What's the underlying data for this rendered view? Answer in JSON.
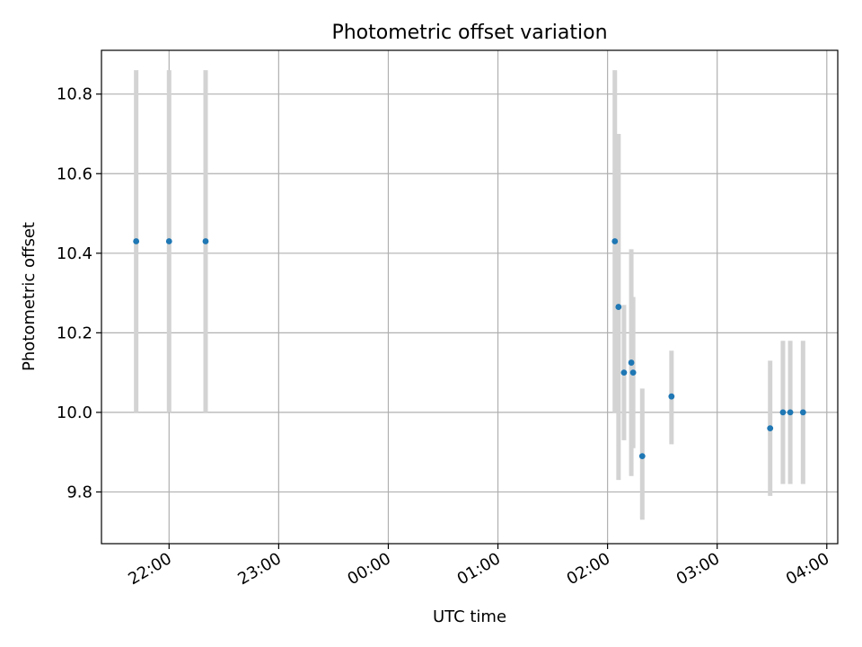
{
  "chart_data": {
    "type": "scatter",
    "title": "Photometric offset variation",
    "xlabel": "UTC time",
    "ylabel": "Photometric offset",
    "xlim": [
      "21:23",
      "04:06"
    ],
    "ylim": [
      9.67,
      10.91
    ],
    "x_ticks": [
      "22:00",
      "23:00",
      "00:00",
      "01:00",
      "02:00",
      "03:00",
      "04:00"
    ],
    "y_ticks": [
      "9.8",
      "10.0",
      "10.2",
      "10.4",
      "10.6",
      "10.8"
    ],
    "grid": true,
    "errorbar_color": "#d3d3d3",
    "marker_color": "#1f77b4",
    "points": [
      {
        "x": "21:42",
        "y": 10.43,
        "yerr_low": 10.0,
        "yerr_high": 10.86
      },
      {
        "x": "22:00",
        "y": 10.43,
        "yerr_low": 10.0,
        "yerr_high": 10.86
      },
      {
        "x": "22:20",
        "y": 10.43,
        "yerr_low": 10.0,
        "yerr_high": 10.86
      },
      {
        "x": "02:04",
        "y": 10.43,
        "yerr_low": 10.0,
        "yerr_high": 10.86
      },
      {
        "x": "02:06",
        "y": 10.265,
        "yerr_low": 9.83,
        "yerr_high": 10.7
      },
      {
        "x": "02:09",
        "y": 10.1,
        "yerr_low": 9.93,
        "yerr_high": 10.27
      },
      {
        "x": "02:13",
        "y": 10.125,
        "yerr_low": 9.84,
        "yerr_high": 10.41
      },
      {
        "x": "02:14",
        "y": 10.1,
        "yerr_low": 9.91,
        "yerr_high": 10.29
      },
      {
        "x": "02:19",
        "y": 9.89,
        "yerr_low": 9.73,
        "yerr_high": 10.06
      },
      {
        "x": "02:35",
        "y": 10.04,
        "yerr_low": 9.92,
        "yerr_high": 10.155
      },
      {
        "x": "03:29",
        "y": 9.96,
        "yerr_low": 9.79,
        "yerr_high": 10.13
      },
      {
        "x": "03:36",
        "y": 10.0,
        "yerr_low": 9.82,
        "yerr_high": 10.18
      },
      {
        "x": "03:40",
        "y": 10.0,
        "yerr_low": 9.82,
        "yerr_high": 10.18
      },
      {
        "x": "03:47",
        "y": 10.0,
        "yerr_low": 9.82,
        "yerr_high": 10.18
      }
    ]
  }
}
